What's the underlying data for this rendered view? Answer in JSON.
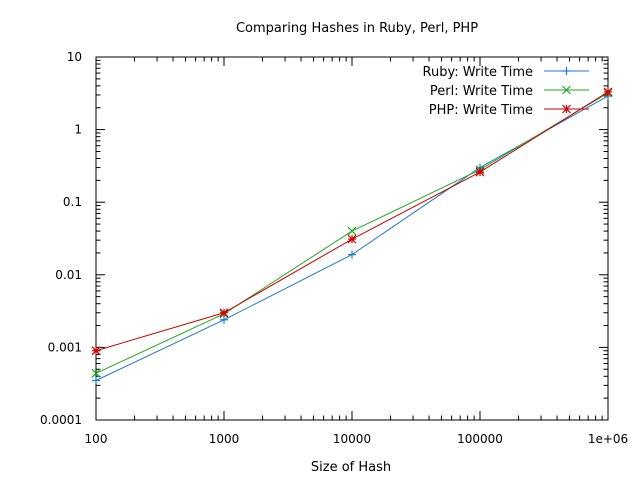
{
  "chart_data": {
    "type": "line",
    "title": "Comparing Hashes in Ruby, Perl, PHP",
    "xlabel": "Size of Hash",
    "ylabel": "",
    "x_scale": "log",
    "y_scale": "log",
    "xlim": [
      100,
      1000000
    ],
    "ylim": [
      0.0001,
      10
    ],
    "x_ticks": [
      {
        "value": 100,
        "label": "100"
      },
      {
        "value": 1000,
        "label": "1000"
      },
      {
        "value": 10000,
        "label": "10000"
      },
      {
        "value": 100000,
        "label": "100000"
      },
      {
        "value": 1000000,
        "label": "1e+06"
      }
    ],
    "y_ticks": [
      {
        "value": 0.0001,
        "label": "0.0001"
      },
      {
        "value": 0.001,
        "label": "0.001"
      },
      {
        "value": 0.01,
        "label": "0.01"
      },
      {
        "value": 0.1,
        "label": "0.1"
      },
      {
        "value": 1,
        "label": "1"
      },
      {
        "value": 10,
        "label": "10"
      }
    ],
    "grid": false,
    "legend_position": "top-right",
    "x": [
      100,
      1000,
      10000,
      100000,
      1000000
    ],
    "series": [
      {
        "name": "Ruby: Write Time",
        "color": "#1f77d4",
        "marker": "plus",
        "values": [
          0.00035,
          0.0024,
          0.019,
          0.3,
          2.9
        ]
      },
      {
        "name": "Perl: Write Time",
        "color": "#22aa22",
        "marker": "cross",
        "values": [
          0.00044,
          0.0029,
          0.04,
          0.28,
          3.2
        ]
      },
      {
        "name": "PHP: Write Time",
        "color": "#cc0000",
        "marker": "star",
        "values": [
          0.0009,
          0.003,
          0.031,
          0.26,
          3.3
        ]
      }
    ]
  }
}
